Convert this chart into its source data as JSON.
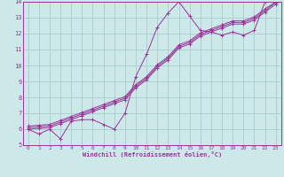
{
  "xlabel": "Windchill (Refroidissement éolien,°C)",
  "bg_color": "#cce8e8",
  "grid_color": "#aacccc",
  "line_color": "#993399",
  "xlim": [
    -0.5,
    23.5
  ],
  "ylim": [
    5,
    14
  ],
  "xticks": [
    0,
    1,
    2,
    3,
    4,
    5,
    6,
    7,
    8,
    9,
    10,
    11,
    12,
    13,
    14,
    15,
    16,
    17,
    18,
    19,
    20,
    21,
    22,
    23
  ],
  "yticks": [
    5,
    6,
    7,
    8,
    9,
    10,
    11,
    12,
    13,
    14
  ],
  "line1_x": [
    0,
    1,
    2,
    3,
    4,
    5,
    6,
    7,
    8,
    9,
    10,
    11,
    12,
    13,
    14,
    15,
    16,
    17,
    18,
    19,
    20,
    21,
    22,
    23
  ],
  "line1_y": [
    6.0,
    5.7,
    6.0,
    5.4,
    6.5,
    6.6,
    6.6,
    6.3,
    6.0,
    7.0,
    9.3,
    10.7,
    12.4,
    13.3,
    14.0,
    13.1,
    12.2,
    12.1,
    11.9,
    12.1,
    11.9,
    12.2,
    14.0,
    14.0
  ],
  "line2_x": [
    0,
    1,
    2,
    3,
    4,
    5,
    6,
    7,
    8,
    9,
    10,
    11,
    12,
    13,
    14,
    15,
    16,
    17,
    18,
    19,
    20,
    21,
    22,
    23
  ],
  "line2_y": [
    6.0,
    6.05,
    6.1,
    6.35,
    6.6,
    6.85,
    7.1,
    7.35,
    7.6,
    7.85,
    8.6,
    9.1,
    9.85,
    10.35,
    11.1,
    11.35,
    11.85,
    12.1,
    12.35,
    12.6,
    12.6,
    12.85,
    13.35,
    13.85
  ],
  "line3_x": [
    0,
    1,
    2,
    3,
    4,
    5,
    6,
    7,
    8,
    9,
    10,
    11,
    12,
    13,
    14,
    15,
    16,
    17,
    18,
    19,
    20,
    21,
    22,
    23
  ],
  "line3_y": [
    6.1,
    6.15,
    6.2,
    6.45,
    6.7,
    6.95,
    7.2,
    7.45,
    7.7,
    7.95,
    8.7,
    9.2,
    9.95,
    10.45,
    11.2,
    11.45,
    11.95,
    12.2,
    12.45,
    12.7,
    12.7,
    12.95,
    13.45,
    13.95
  ],
  "line4_x": [
    0,
    1,
    2,
    3,
    4,
    5,
    6,
    7,
    8,
    9,
    10,
    11,
    12,
    13,
    14,
    15,
    16,
    17,
    18,
    19,
    20,
    21,
    22,
    23
  ],
  "line4_y": [
    6.2,
    6.25,
    6.3,
    6.55,
    6.8,
    7.05,
    7.3,
    7.55,
    7.8,
    8.05,
    8.8,
    9.3,
    10.05,
    10.55,
    11.3,
    11.55,
    12.05,
    12.3,
    12.55,
    12.8,
    12.8,
    13.05,
    13.55,
    14.0
  ]
}
